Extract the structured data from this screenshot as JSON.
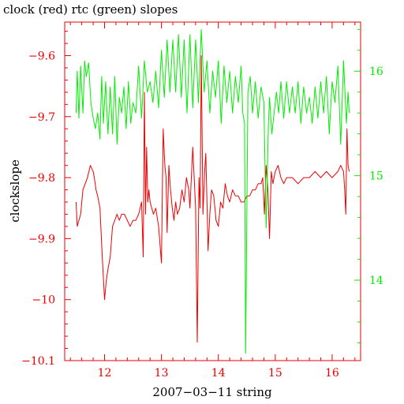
{
  "chart_data": {
    "type": "line",
    "title": "clock (red) rtc (green) slopes",
    "xlabel": "2007−03−11 string",
    "ylabel": "clockslope",
    "xlim": [
      11.3,
      16.5
    ],
    "ylim": [
      -10.1,
      -9.545
    ],
    "y2lim": [
      13.23,
      16.47
    ],
    "x_ticks": [
      12,
      13,
      14,
      15,
      16
    ],
    "x_tick_labels": [
      "12",
      "13",
      "14",
      "15",
      "16"
    ],
    "y_ticks": [
      -9.6,
      -9.7,
      -9.8,
      -9.9,
      -10.0,
      -10.1
    ],
    "y_tick_labels": [
      "−9.6",
      "−9.7",
      "−9.8",
      "−9.9",
      "−10",
      "−10.1"
    ],
    "y2_ticks": [
      16,
      15,
      14
    ],
    "y2_tick_labels": [
      "16",
      "15",
      "14"
    ],
    "grid": false,
    "colors": {
      "clock": "#ee0000",
      "rtc": "#00ee00",
      "axes": "#ee0000",
      "right_axis": "#00ee00",
      "text": "#000000"
    },
    "series": [
      {
        "axis": "left",
        "x": [
          11.5,
          11.52,
          11.55,
          11.58,
          11.62,
          11.66,
          11.7,
          11.75,
          11.8,
          11.82,
          11.85,
          11.88,
          11.92,
          11.96,
          12.0,
          12.03,
          12.06,
          12.1,
          12.14,
          12.18,
          12.22,
          12.26,
          12.3,
          12.35,
          12.4,
          12.45,
          12.5,
          12.55,
          12.6,
          12.65,
          12.68,
          12.7,
          12.72,
          12.74,
          12.76,
          12.78,
          12.8,
          12.83,
          12.86,
          12.9,
          12.95,
          13.0,
          13.03,
          13.06,
          13.08,
          13.1,
          13.13,
          13.16,
          13.19,
          13.22,
          13.25,
          13.28,
          13.32,
          13.36,
          13.4,
          13.44,
          13.48,
          13.5,
          13.55,
          13.6,
          13.63,
          13.66,
          13.68,
          13.7,
          13.73,
          13.76,
          13.78,
          13.8,
          13.82,
          13.85,
          13.88,
          13.92,
          13.96,
          14.0,
          14.04,
          14.08,
          14.12,
          14.16,
          14.2,
          14.25,
          14.3,
          14.35,
          14.4,
          14.45,
          14.5,
          14.55,
          14.6,
          14.65,
          14.7,
          14.75,
          14.78,
          14.81,
          14.84,
          14.87,
          14.9,
          14.93,
          14.96,
          15.0,
          15.05,
          15.1,
          15.15,
          15.2,
          15.3,
          15.4,
          15.5,
          15.6,
          15.7,
          15.8,
          15.9,
          16.0,
          16.1,
          16.15,
          16.2,
          16.22,
          16.24,
          16.26,
          16.28,
          16.3
        ],
        "values": [
          -9.84,
          -9.88,
          -9.87,
          -9.86,
          -9.82,
          -9.81,
          -9.8,
          -9.78,
          -9.79,
          -9.8,
          -9.82,
          -9.83,
          -9.85,
          -9.93,
          -10.0,
          -9.97,
          -9.95,
          -9.93,
          -9.88,
          -9.87,
          -9.86,
          -9.87,
          -9.86,
          -9.86,
          -9.87,
          -9.88,
          -9.87,
          -9.87,
          -9.86,
          -9.84,
          -9.93,
          -9.66,
          -9.86,
          -9.75,
          -9.84,
          -9.82,
          -9.84,
          -9.85,
          -9.86,
          -9.85,
          -9.88,
          -9.94,
          -9.72,
          -9.78,
          -9.8,
          -9.89,
          -9.78,
          -9.82,
          -9.85,
          -9.87,
          -9.84,
          -9.86,
          -9.85,
          -9.82,
          -9.84,
          -9.8,
          -9.82,
          -9.85,
          -9.75,
          -9.85,
          -10.07,
          -9.8,
          -9.85,
          -9.6,
          -9.86,
          -9.79,
          -9.76,
          -9.84,
          -9.92,
          -9.86,
          -9.82,
          -9.83,
          -9.87,
          -9.88,
          -9.84,
          -9.85,
          -9.81,
          -9.83,
          -9.84,
          -9.82,
          -9.83,
          -9.83,
          -9.84,
          -9.84,
          -9.83,
          -9.83,
          -9.82,
          -9.82,
          -9.81,
          -9.81,
          -9.8,
          -9.86,
          -9.78,
          -9.82,
          -9.9,
          -9.79,
          -9.81,
          -9.79,
          -9.78,
          -9.8,
          -9.81,
          -9.8,
          -9.8,
          -9.81,
          -9.8,
          -9.8,
          -9.79,
          -9.8,
          -9.79,
          -9.8,
          -9.79,
          -9.78,
          -9.79,
          -9.82,
          -9.86,
          -9.72,
          -9.78,
          -9.79
        ],
        "color": "#ee0000"
      },
      {
        "axis": "right",
        "x": [
          11.5,
          11.52,
          11.55,
          11.58,
          11.62,
          11.65,
          11.68,
          11.72,
          11.76,
          11.8,
          11.84,
          11.88,
          11.92,
          11.95,
          11.98,
          12.02,
          12.06,
          12.1,
          12.14,
          12.18,
          12.22,
          12.26,
          12.3,
          12.34,
          12.38,
          12.42,
          12.46,
          12.5,
          12.55,
          12.6,
          12.65,
          12.7,
          12.75,
          12.8,
          12.85,
          12.9,
          12.95,
          13.0,
          13.05,
          13.1,
          13.15,
          13.2,
          13.25,
          13.3,
          13.35,
          13.4,
          13.45,
          13.5,
          13.55,
          13.6,
          13.65,
          13.7,
          13.75,
          13.8,
          13.85,
          13.9,
          13.95,
          14.0,
          14.05,
          14.1,
          14.15,
          14.2,
          14.25,
          14.3,
          14.35,
          14.4,
          14.43,
          14.46,
          14.48,
          14.52,
          14.56,
          14.6,
          14.65,
          14.7,
          14.75,
          14.8,
          14.84,
          14.88,
          14.9,
          14.94,
          14.98,
          15.02,
          15.06,
          15.1,
          15.15,
          15.2,
          15.25,
          15.3,
          15.35,
          15.4,
          15.45,
          15.5,
          15.55,
          15.6,
          15.65,
          15.7,
          15.75,
          15.8,
          15.85,
          15.9,
          15.95,
          16.0,
          16.05,
          16.1,
          16.15,
          16.2,
          16.25,
          16.28,
          16.3
        ],
        "values": [
          15.6,
          16.0,
          15.55,
          16.05,
          15.6,
          16.1,
          15.95,
          16.08,
          15.7,
          15.55,
          15.45,
          15.6,
          15.35,
          15.95,
          15.5,
          15.9,
          15.4,
          15.85,
          15.4,
          15.95,
          15.3,
          15.75,
          15.6,
          15.85,
          15.45,
          15.9,
          15.5,
          15.7,
          15.6,
          16.05,
          15.55,
          16.1,
          15.8,
          15.9,
          15.7,
          16.0,
          15.65,
          16.2,
          15.75,
          16.3,
          15.8,
          16.3,
          15.8,
          16.35,
          15.75,
          16.3,
          15.6,
          16.35,
          15.65,
          16.3,
          15.7,
          16.4,
          15.8,
          16.1,
          15.6,
          16.0,
          15.75,
          16.1,
          15.5,
          16.05,
          15.7,
          16.0,
          15.6,
          15.95,
          15.7,
          16.05,
          15.6,
          15.5,
          13.3,
          15.8,
          15.95,
          15.6,
          15.9,
          15.55,
          15.85,
          15.7,
          14.5,
          15.5,
          15.75,
          15.4,
          15.6,
          15.8,
          15.6,
          15.9,
          15.55,
          15.9,
          15.6,
          15.85,
          15.6,
          15.9,
          15.5,
          15.85,
          15.6,
          15.75,
          15.5,
          15.85,
          15.55,
          15.9,
          15.6,
          15.95,
          15.4,
          15.9,
          15.7,
          16.05,
          15.3,
          16.1,
          15.5,
          15.8,
          15.6
        ],
        "color": "#00ee00"
      }
    ]
  }
}
